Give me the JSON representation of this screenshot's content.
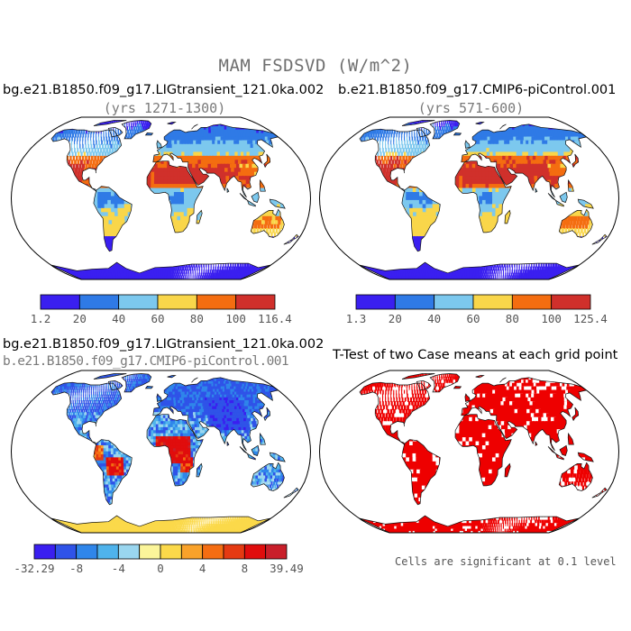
{
  "figure": {
    "suptitle": "MAM FSDSVD (W/m^2)",
    "note": "Cells are significant at 0.1 level"
  },
  "panels": [
    {
      "title": "bg.e21.B1850.f09_g17.LIGtransient_121.0ka.002",
      "subtitle": "(yrs 1271-1300)",
      "colorbar": {
        "labels": [
          "1.2",
          "20",
          "40",
          "60",
          "80",
          "100",
          "116.4"
        ],
        "colors": [
          "#3a1ff0",
          "#2f7ae6",
          "#7cc8ee",
          "#f9d64a",
          "#f46d10",
          "#d0302b"
        ]
      }
    },
    {
      "title": "b.e21.B1850.f09_g17.CMIP6-piControl.001",
      "subtitle": "(yrs 571-600)",
      "colorbar": {
        "labels": [
          "1.3",
          "20",
          "40",
          "60",
          "80",
          "100",
          "125.4"
        ],
        "colors": [
          "#3a1ff0",
          "#2f7ae6",
          "#7cc8ee",
          "#f9d64a",
          "#f46d10",
          "#d0302b"
        ]
      }
    },
    {
      "title": "bg.e21.B1850.f09_g17.LIGtransient_121.0ka.002",
      "subtitle": "b.e21.B1850.f09_g17.CMIP6-piControl.001",
      "colorbar": {
        "labels": [
          "-32.29",
          "-8",
          "-4",
          "0",
          "4",
          "8",
          "39.49"
        ],
        "colors": [
          "#3a1ff0",
          "#2f53e8",
          "#2f86ea",
          "#4fb3ec",
          "#9ad6ef",
          "#fbf59a",
          "#fbd94a",
          "#f9a22a",
          "#f56d12",
          "#e53a12",
          "#e00d0d",
          "#c91f2a"
        ]
      }
    },
    {
      "title": "T-Test of two Case means at each grid point",
      "colorbar": null
    }
  ],
  "colors": {
    "significant": "#ee0000",
    "ocean": "#ffffff",
    "coast": "#111111"
  }
}
